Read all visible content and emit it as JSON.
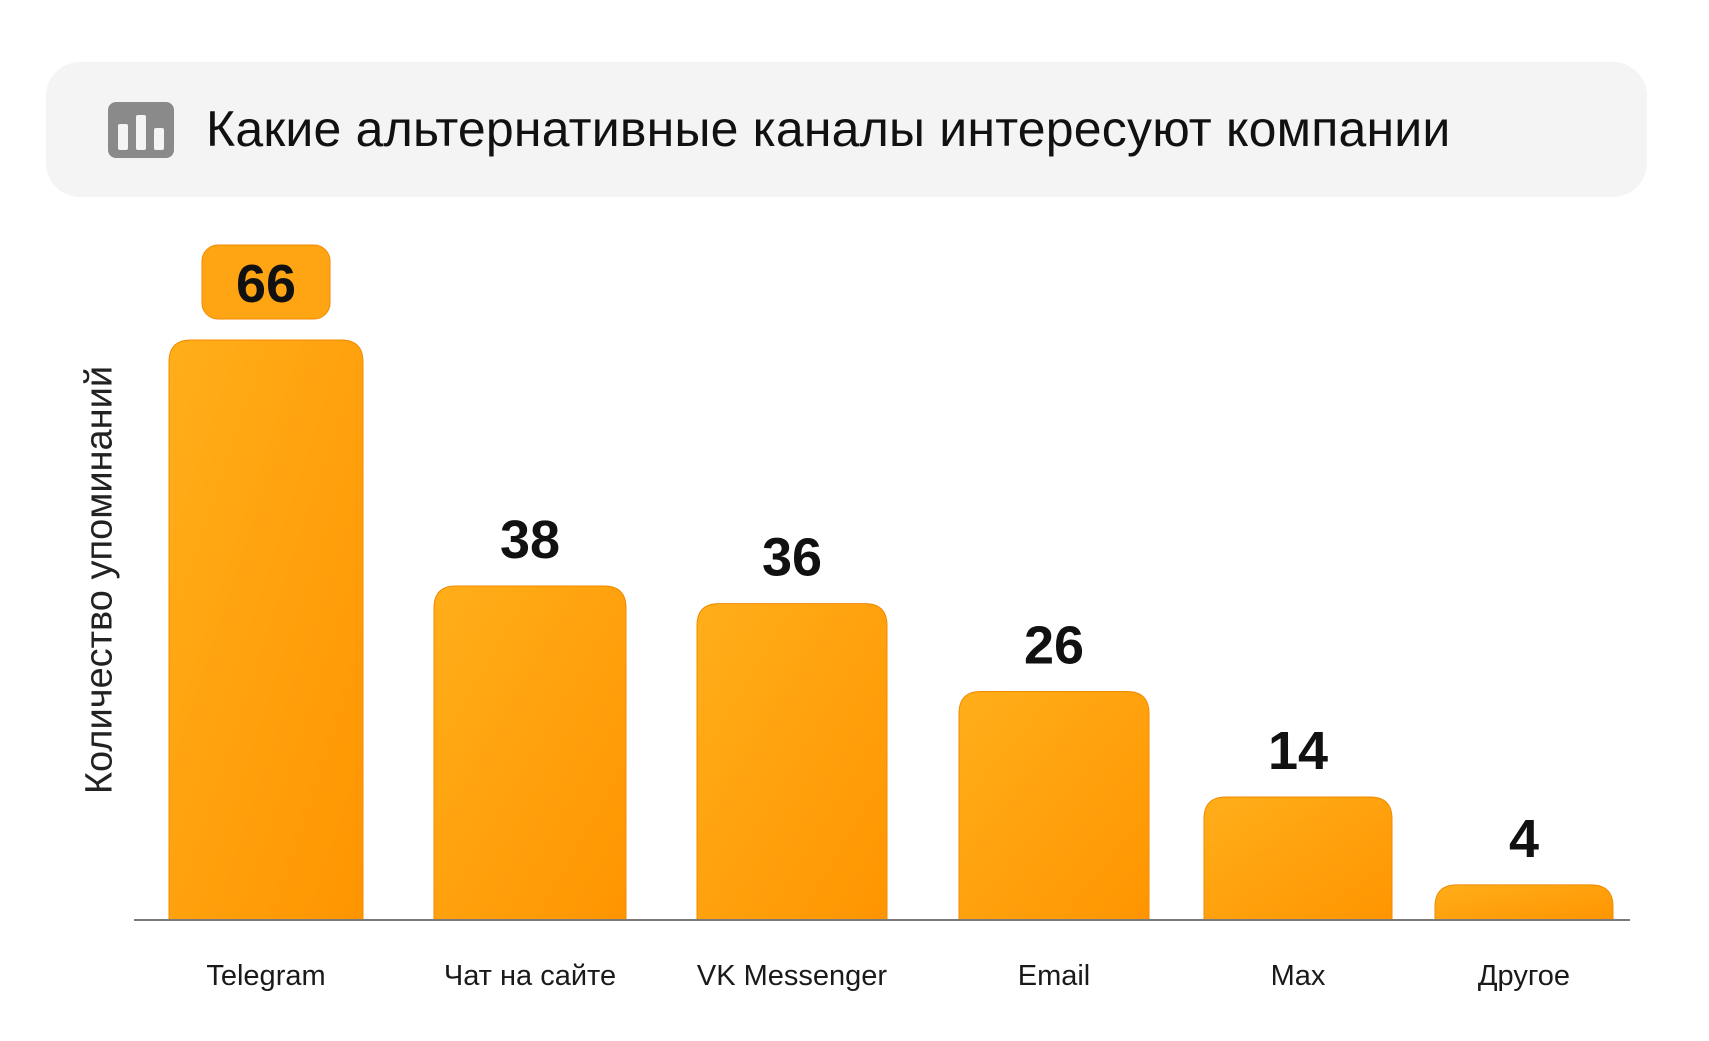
{
  "header": {
    "icon": "bar-chart-icon",
    "title": "Какие альтернативные каналы интересуют компании"
  },
  "colors": {
    "bar_light": "#ffae1a",
    "bar_dark": "#ff9500",
    "bar_edge": "#f08a00",
    "highlight_badge": "#ffa514",
    "card_bg": "#f4f4f4",
    "icon": "#8a8a8a"
  },
  "chart_data": {
    "type": "bar",
    "title": "Какие альтернативные каналы интересуют компании",
    "xlabel": "",
    "ylabel": "Количество упоминаний",
    "categories": [
      "Telegram",
      "Чат на сайте",
      "VK Messenger",
      "Email",
      "Max",
      "Другое"
    ],
    "values": [
      66,
      38,
      36,
      26,
      14,
      4
    ],
    "data_labels": [
      "66",
      "38",
      "36",
      "26",
      "14",
      "4"
    ],
    "highlighted_index": 0,
    "ylim": [
      0,
      66
    ],
    "grid": false,
    "legend": "none"
  }
}
